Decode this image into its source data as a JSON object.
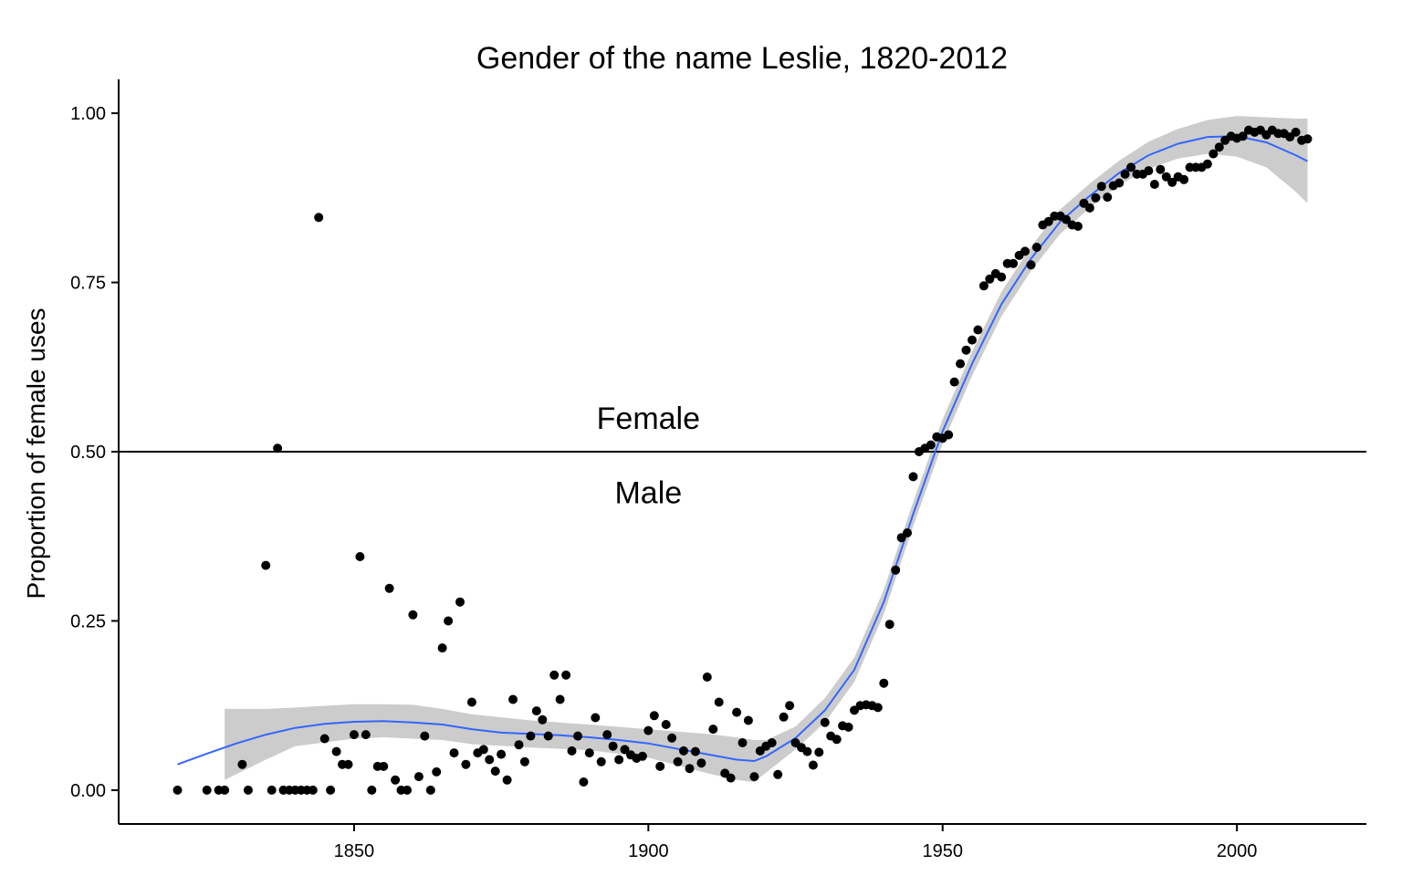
{
  "chart_data": {
    "type": "scatter",
    "title": "Gender of the name Leslie, 1820-2012",
    "xlabel": "",
    "ylabel": "Proportion of female uses",
    "xlim": [
      1810,
      2022
    ],
    "ylim": [
      -0.05,
      1.05
    ],
    "x_ticks": [
      1850,
      1900,
      1950,
      2000
    ],
    "y_ticks": [
      0.0,
      0.25,
      0.5,
      0.75,
      1.0
    ],
    "y_tick_labels": [
      "0.00",
      "0.25",
      "0.50",
      "0.75",
      "1.00"
    ],
    "grid": false,
    "reference_line": {
      "y": 0.5
    },
    "annotations": [
      {
        "text": "Female",
        "x": 1900,
        "y": 0.55
      },
      {
        "text": "Male",
        "x": 1900,
        "y": 0.44
      }
    ],
    "colors": {
      "points": "#000000",
      "smooth": "#3366ff",
      "ribbon": "#cccccc",
      "refline": "#000000"
    },
    "points": [
      [
        1820,
        0.0
      ],
      [
        1825,
        0.0
      ],
      [
        1827,
        0.0
      ],
      [
        1828,
        0.0
      ],
      [
        1831,
        0.038
      ],
      [
        1832,
        0.0
      ],
      [
        1835,
        0.332
      ],
      [
        1836,
        0.0
      ],
      [
        1837,
        0.505
      ],
      [
        1838,
        0.0
      ],
      [
        1839,
        0.0
      ],
      [
        1840,
        0.0
      ],
      [
        1841,
        0.0
      ],
      [
        1842,
        0.0
      ],
      [
        1843,
        0.0
      ],
      [
        1844,
        0.846
      ],
      [
        1845,
        0.076
      ],
      [
        1846,
        0.0
      ],
      [
        1847,
        0.057
      ],
      [
        1848,
        0.038
      ],
      [
        1849,
        0.038
      ],
      [
        1850,
        0.082
      ],
      [
        1851,
        0.345
      ],
      [
        1852,
        0.082
      ],
      [
        1853,
        0.0
      ],
      [
        1854,
        0.035
      ],
      [
        1855,
        0.035
      ],
      [
        1856,
        0.298
      ],
      [
        1857,
        0.015
      ],
      [
        1858,
        0.0
      ],
      [
        1859,
        0.0
      ],
      [
        1860,
        0.259
      ],
      [
        1861,
        0.02
      ],
      [
        1862,
        0.08
      ],
      [
        1863,
        0.0
      ],
      [
        1864,
        0.027
      ],
      [
        1865,
        0.21
      ],
      [
        1866,
        0.25
      ],
      [
        1867,
        0.055
      ],
      [
        1868,
        0.278
      ],
      [
        1869,
        0.038
      ],
      [
        1870,
        0.13
      ],
      [
        1871,
        0.055
      ],
      [
        1872,
        0.06
      ],
      [
        1873,
        0.045
      ],
      [
        1874,
        0.028
      ],
      [
        1875,
        0.053
      ],
      [
        1876,
        0.015
      ],
      [
        1877,
        0.134
      ],
      [
        1878,
        0.067
      ],
      [
        1879,
        0.042
      ],
      [
        1880,
        0.08
      ],
      [
        1881,
        0.117
      ],
      [
        1882,
        0.104
      ],
      [
        1883,
        0.08
      ],
      [
        1884,
        0.17
      ],
      [
        1885,
        0.134
      ],
      [
        1886,
        0.17
      ],
      [
        1887,
        0.058
      ],
      [
        1888,
        0.08
      ],
      [
        1889,
        0.012
      ],
      [
        1890,
        0.055
      ],
      [
        1891,
        0.107
      ],
      [
        1892,
        0.042
      ],
      [
        1893,
        0.082
      ],
      [
        1894,
        0.065
      ],
      [
        1895,
        0.045
      ],
      [
        1896,
        0.06
      ],
      [
        1897,
        0.052
      ],
      [
        1898,
        0.047
      ],
      [
        1899,
        0.05
      ],
      [
        1900,
        0.088
      ],
      [
        1901,
        0.11
      ],
      [
        1902,
        0.035
      ],
      [
        1903,
        0.097
      ],
      [
        1904,
        0.077
      ],
      [
        1905,
        0.042
      ],
      [
        1906,
        0.058
      ],
      [
        1907,
        0.032
      ],
      [
        1908,
        0.057
      ],
      [
        1909,
        0.04
      ],
      [
        1910,
        0.167
      ],
      [
        1911,
        0.09
      ],
      [
        1912,
        0.13
      ],
      [
        1913,
        0.025
      ],
      [
        1914,
        0.018
      ],
      [
        1915,
        0.115
      ],
      [
        1916,
        0.07
      ],
      [
        1917,
        0.103
      ],
      [
        1918,
        0.02
      ],
      [
        1919,
        0.058
      ],
      [
        1920,
        0.065
      ],
      [
        1921,
        0.07
      ],
      [
        1922,
        0.023
      ],
      [
        1923,
        0.108
      ],
      [
        1924,
        0.125
      ],
      [
        1925,
        0.07
      ],
      [
        1926,
        0.063
      ],
      [
        1927,
        0.057
      ],
      [
        1928,
        0.037
      ],
      [
        1929,
        0.056
      ],
      [
        1930,
        0.1
      ],
      [
        1931,
        0.08
      ],
      [
        1932,
        0.075
      ],
      [
        1933,
        0.095
      ],
      [
        1934,
        0.093
      ],
      [
        1935,
        0.118
      ],
      [
        1936,
        0.125
      ],
      [
        1937,
        0.126
      ],
      [
        1938,
        0.125
      ],
      [
        1939,
        0.122
      ],
      [
        1940,
        0.158
      ],
      [
        1941,
        0.245
      ],
      [
        1942,
        0.325
      ],
      [
        1943,
        0.373
      ],
      [
        1944,
        0.38
      ],
      [
        1945,
        0.463
      ],
      [
        1946,
        0.5
      ],
      [
        1947,
        0.505
      ],
      [
        1948,
        0.51
      ],
      [
        1949,
        0.522
      ],
      [
        1950,
        0.52
      ],
      [
        1951,
        0.525
      ],
      [
        1952,
        0.603
      ],
      [
        1953,
        0.63
      ],
      [
        1954,
        0.65
      ],
      [
        1955,
        0.665
      ],
      [
        1956,
        0.68
      ],
      [
        1957,
        0.745
      ],
      [
        1958,
        0.755
      ],
      [
        1959,
        0.763
      ],
      [
        1960,
        0.758
      ],
      [
        1961,
        0.778
      ],
      [
        1962,
        0.778
      ],
      [
        1963,
        0.79
      ],
      [
        1964,
        0.796
      ],
      [
        1965,
        0.776
      ],
      [
        1966,
        0.802
      ],
      [
        1967,
        0.835
      ],
      [
        1968,
        0.84
      ],
      [
        1969,
        0.848
      ],
      [
        1970,
        0.848
      ],
      [
        1971,
        0.843
      ],
      [
        1972,
        0.835
      ],
      [
        1973,
        0.833
      ],
      [
        1974,
        0.867
      ],
      [
        1975,
        0.86
      ],
      [
        1976,
        0.875
      ],
      [
        1977,
        0.892
      ],
      [
        1978,
        0.876
      ],
      [
        1979,
        0.893
      ],
      [
        1980,
        0.897
      ],
      [
        1981,
        0.91
      ],
      [
        1982,
        0.92
      ],
      [
        1983,
        0.91
      ],
      [
        1984,
        0.91
      ],
      [
        1985,
        0.915
      ],
      [
        1986,
        0.895
      ],
      [
        1987,
        0.917
      ],
      [
        1988,
        0.906
      ],
      [
        1989,
        0.898
      ],
      [
        1990,
        0.906
      ],
      [
        1991,
        0.902
      ],
      [
        1992,
        0.92
      ],
      [
        1993,
        0.92
      ],
      [
        1994,
        0.92
      ],
      [
        1995,
        0.925
      ],
      [
        1996,
        0.94
      ],
      [
        1997,
        0.95
      ],
      [
        1998,
        0.96
      ],
      [
        1999,
        0.966
      ],
      [
        2000,
        0.963
      ],
      [
        2001,
        0.966
      ],
      [
        2002,
        0.975
      ],
      [
        2003,
        0.972
      ],
      [
        2004,
        0.975
      ],
      [
        2005,
        0.968
      ],
      [
        2006,
        0.975
      ],
      [
        2007,
        0.97
      ],
      [
        2008,
        0.97
      ],
      [
        2009,
        0.965
      ],
      [
        2010,
        0.972
      ],
      [
        2011,
        0.96
      ],
      [
        2012,
        0.962
      ]
    ],
    "smooth": [
      [
        1820,
        0.038
      ],
      [
        1825,
        0.054
      ],
      [
        1830,
        0.069
      ],
      [
        1835,
        0.082
      ],
      [
        1840,
        0.092
      ],
      [
        1845,
        0.098
      ],
      [
        1850,
        0.101
      ],
      [
        1855,
        0.102
      ],
      [
        1860,
        0.1
      ],
      [
        1865,
        0.097
      ],
      [
        1870,
        0.09
      ],
      [
        1875,
        0.085
      ],
      [
        1880,
        0.083
      ],
      [
        1885,
        0.081
      ],
      [
        1890,
        0.078
      ],
      [
        1895,
        0.074
      ],
      [
        1900,
        0.069
      ],
      [
        1905,
        0.061
      ],
      [
        1910,
        0.053
      ],
      [
        1915,
        0.045
      ],
      [
        1918,
        0.043
      ],
      [
        1920,
        0.05
      ],
      [
        1925,
        0.077
      ],
      [
        1930,
        0.118
      ],
      [
        1935,
        0.178
      ],
      [
        1940,
        0.278
      ],
      [
        1945,
        0.408
      ],
      [
        1950,
        0.53
      ],
      [
        1955,
        0.63
      ],
      [
        1960,
        0.718
      ],
      [
        1965,
        0.785
      ],
      [
        1970,
        0.84
      ],
      [
        1975,
        0.878
      ],
      [
        1980,
        0.912
      ],
      [
        1985,
        0.938
      ],
      [
        1990,
        0.955
      ],
      [
        1995,
        0.965
      ],
      [
        2000,
        0.966
      ],
      [
        2005,
        0.957
      ],
      [
        2010,
        0.938
      ],
      [
        2012,
        0.929
      ]
    ],
    "ribbon": [
      [
        1828,
        0.12,
        0.015
      ],
      [
        1835,
        0.12,
        0.045
      ],
      [
        1840,
        0.122,
        0.065
      ],
      [
        1850,
        0.127,
        0.076
      ],
      [
        1855,
        0.127,
        0.078
      ],
      [
        1860,
        0.126,
        0.076
      ],
      [
        1865,
        0.12,
        0.074
      ],
      [
        1870,
        0.112,
        0.068
      ],
      [
        1880,
        0.103,
        0.063
      ],
      [
        1890,
        0.097,
        0.059
      ],
      [
        1900,
        0.09,
        0.048
      ],
      [
        1910,
        0.083,
        0.025
      ],
      [
        1915,
        0.078,
        0.015
      ],
      [
        1918,
        0.074,
        0.012
      ],
      [
        1920,
        0.074,
        0.026
      ],
      [
        1925,
        0.094,
        0.06
      ],
      [
        1930,
        0.136,
        0.1
      ],
      [
        1935,
        0.196,
        0.16
      ],
      [
        1940,
        0.296,
        0.26
      ],
      [
        1945,
        0.426,
        0.39
      ],
      [
        1950,
        0.548,
        0.512
      ],
      [
        1955,
        0.648,
        0.612
      ],
      [
        1960,
        0.736,
        0.7
      ],
      [
        1965,
        0.803,
        0.767
      ],
      [
        1970,
        0.858,
        0.822
      ],
      [
        1975,
        0.896,
        0.86
      ],
      [
        1980,
        0.93,
        0.894
      ],
      [
        1985,
        0.958,
        0.918
      ],
      [
        1990,
        0.977,
        0.933
      ],
      [
        1995,
        0.99,
        0.94
      ],
      [
        2000,
        0.996,
        0.936
      ],
      [
        2005,
        0.994,
        0.92
      ],
      [
        2010,
        0.992,
        0.884
      ],
      [
        2012,
        0.992,
        0.867
      ]
    ]
  }
}
